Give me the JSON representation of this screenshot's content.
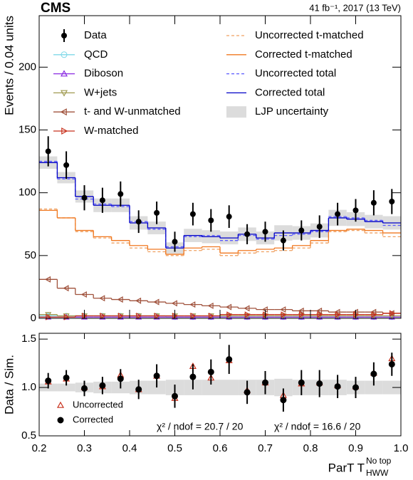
{
  "chart_data": [
    {
      "type": "histogram",
      "header": "CMS",
      "lumi": "41 fb⁻¹, 2017 (13 TeV)",
      "ylabel": "Events / 0.04 units",
      "bins": [
        0.2,
        0.24,
        0.28,
        0.32,
        0.36,
        0.4,
        0.44,
        0.48,
        0.52,
        0.56,
        0.6,
        0.64,
        0.68,
        0.72,
        0.76,
        0.8,
        0.84,
        0.88,
        0.92,
        0.96,
        1.0
      ],
      "ylim": [
        0,
        241
      ],
      "yticks": [
        0,
        50,
        100,
        150,
        200
      ],
      "series": [
        {
          "name": "Data",
          "color": "#000000",
          "style": "points",
          "values": [
            133,
            122,
            96,
            94,
            99,
            77,
            84,
            61,
            83,
            78,
            81,
            67,
            69,
            62,
            70,
            73,
            83,
            86,
            92,
            93
          ],
          "errors": [
            12,
            11,
            10,
            10,
            10,
            9,
            9,
            8,
            9,
            9,
            9,
            8,
            8,
            8,
            8,
            9,
            9,
            9,
            10,
            10
          ]
        },
        {
          "name": "QCD",
          "color": "#7fd8e8",
          "style": "step",
          "marker": "circle",
          "values": [
            2,
            2,
            2,
            2,
            2,
            2,
            2,
            1,
            1,
            1,
            1,
            1,
            1,
            1,
            1,
            1,
            1,
            1,
            1,
            1
          ]
        },
        {
          "name": "Diboson",
          "color": "#8a2be2",
          "style": "step",
          "marker": "triangle-up",
          "values": [
            1,
            1,
            1,
            1,
            1,
            1,
            1,
            1,
            1,
            1,
            1,
            1,
            1,
            1,
            1,
            1,
            1,
            1,
            1,
            1
          ]
        },
        {
          "name": "W+jets",
          "color": "#a09a50",
          "style": "step",
          "marker": "triangle-down",
          "values": [
            3,
            2,
            2,
            2,
            2,
            2,
            2,
            2,
            2,
            2,
            2,
            2,
            2,
            2,
            2,
            2,
            2,
            2,
            2,
            2
          ]
        },
        {
          "name": "t- and W-unmatched",
          "color": "#a0523c",
          "style": "step",
          "marker": "triangle-left",
          "values": [
            31,
            24,
            19,
            16,
            15,
            14,
            13,
            12,
            11,
            10,
            9,
            8,
            7,
            7,
            6,
            6,
            5,
            5,
            5,
            4
          ]
        },
        {
          "name": "W-matched",
          "color": "#c8321e",
          "style": "step",
          "marker": "triangle-right",
          "values": [
            1,
            1,
            2,
            2,
            2,
            2,
            2,
            2,
            2,
            2,
            3,
            3,
            3,
            3,
            3,
            3,
            3,
            3,
            3,
            4
          ]
        },
        {
          "name": "Uncorrected t-matched",
          "color": "#f0a060",
          "style": "step",
          "dash": true,
          "values": [
            87,
            80,
            69,
            64,
            60,
            56,
            53,
            50,
            54,
            55,
            50,
            52,
            53,
            54,
            56,
            60,
            69,
            70,
            68,
            65
          ]
        },
        {
          "name": "Corrected t-matched",
          "color": "#f07820",
          "style": "step",
          "values": [
            86,
            80,
            70,
            65,
            62,
            58,
            55,
            51,
            56,
            57,
            52,
            54,
            55,
            56,
            58,
            62,
            70,
            71,
            70,
            68
          ]
        },
        {
          "name": "Uncorrected total",
          "color": "#5a5aff",
          "style": "step",
          "dash": true,
          "values": [
            125,
            111,
            95,
            91,
            89,
            77,
            71,
            57,
            65,
            66,
            62,
            66,
            63,
            66,
            67,
            69,
            81,
            80,
            78,
            74
          ]
        },
        {
          "name": "Corrected total",
          "color": "#0000c8",
          "style": "step",
          "values": [
            124,
            112,
            97,
            90,
            90,
            76,
            72,
            56,
            66,
            65,
            64,
            67,
            64,
            68,
            68,
            70,
            80,
            79,
            77,
            76
          ]
        }
      ],
      "uncertainty": {
        "name": "LJP uncertainty",
        "color": "#dcdcdc",
        "values": [
          0.04,
          0.04,
          0.05,
          0.06,
          0.06,
          0.07,
          0.07,
          0.08,
          0.08,
          0.08,
          0.08,
          0.08,
          0.08,
          0.09,
          0.08,
          0.08,
          0.08,
          0.07,
          0.07,
          0.07
        ]
      }
    },
    {
      "type": "ratio",
      "ylabel": "Data / Sim.",
      "xlabel": "ParT T",
      "xlabel_sup": "No top",
      "xlabel_sub": "HWW",
      "xlim": [
        0.2,
        1.0
      ],
      "xticks": [
        0.2,
        0.3,
        0.4,
        0.5,
        0.6,
        0.7,
        0.8,
        0.9,
        {
          "value": 1.0,
          "label": "1.0"
        }
      ],
      "ylim": [
        0.5,
        1.56
      ],
      "yticks": [
        0.5,
        {
          "value": 1.0,
          "label": "1.0"
        },
        1.5
      ],
      "series": [
        {
          "name": "Uncorrected",
          "color": "#c8321e",
          "marker": "triangle-open",
          "values": [
            1.06,
            1.09,
            1.0,
            1.01,
            1.13,
            0.98,
            1.12,
            0.89,
            1.22,
            1.1,
            1.28,
            0.97,
            1.05,
            0.92,
            1.04,
            1.05,
            1.02,
            1.01,
            1.15,
            1.3
          ],
          "chi2": "χ² / ndof = 20.7 / 20"
        },
        {
          "name": "Corrected",
          "color": "#000000",
          "marker": "circle",
          "values": [
            1.07,
            1.1,
            0.99,
            1.02,
            1.09,
            0.98,
            1.12,
            0.91,
            1.11,
            1.16,
            1.29,
            0.95,
            1.05,
            0.87,
            1.05,
            1.04,
            1.01,
            1.0,
            1.14,
            1.24
          ],
          "errors": [
            0.08,
            0.08,
            0.08,
            0.09,
            0.1,
            0.1,
            0.12,
            0.12,
            0.13,
            0.13,
            0.15,
            0.12,
            0.12,
            0.12,
            0.13,
            0.14,
            0.12,
            0.11,
            0.12,
            0.12
          ],
          "chi2": "χ² / ndof = 16.6 / 20"
        }
      ]
    }
  ]
}
